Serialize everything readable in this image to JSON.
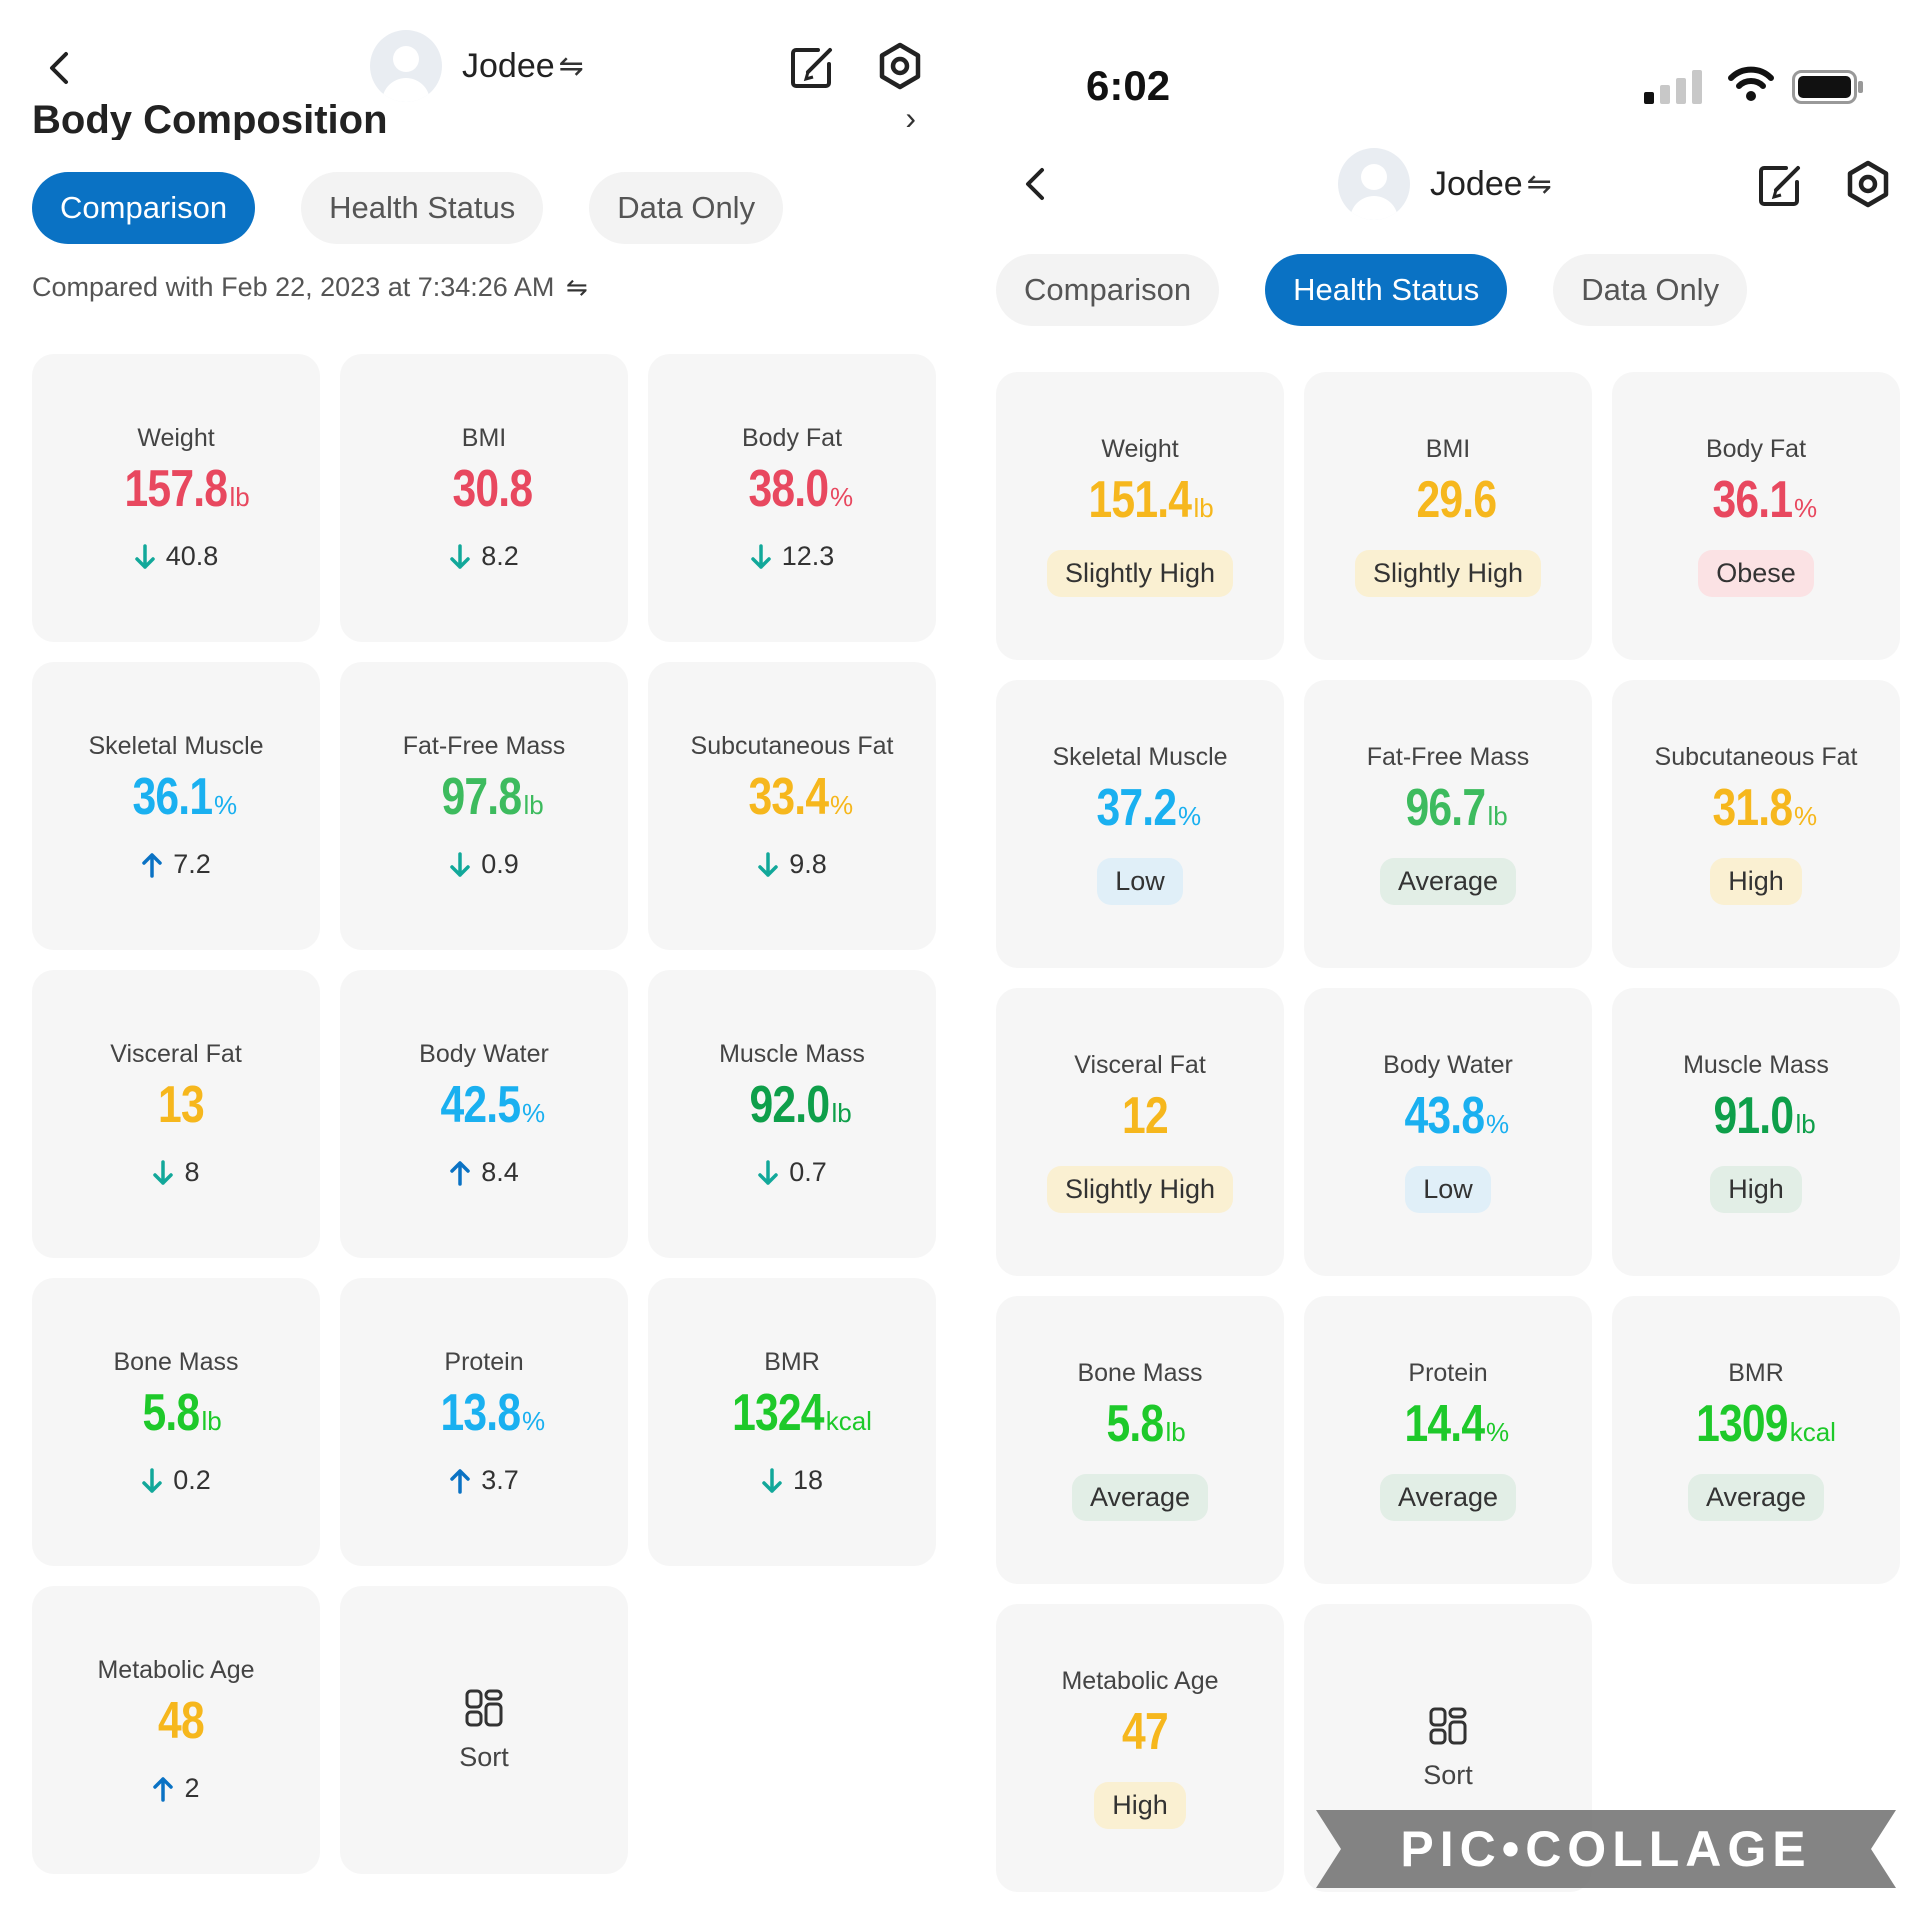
{
  "left": {
    "user_name": "Jodee",
    "section_title": "Body Composition",
    "tabs": [
      "Comparison",
      "Health Status",
      "Data Only"
    ],
    "active_tab": "Comparison",
    "compared_text": "Compared with Feb 22, 2023 at 7:34:26 AM",
    "metrics": [
      {
        "label": "Weight",
        "value": "157.8",
        "unit": "lb",
        "color": "#e8485f",
        "direction": "down",
        "change": "40.8"
      },
      {
        "label": "BMI",
        "value": "30.8",
        "unit": "",
        "color": "#e8485f",
        "direction": "down",
        "change": "8.2"
      },
      {
        "label": "Body Fat",
        "value": "38.0",
        "unit": "%",
        "color": "#e8485f",
        "direction": "down",
        "change": "12.3"
      },
      {
        "label": "Skeletal Muscle",
        "value": "36.1",
        "unit": "%",
        "color": "#1ab0f0",
        "direction": "up",
        "change": "7.2"
      },
      {
        "label": "Fat-Free Mass",
        "value": "97.8",
        "unit": "lb",
        "color": "#3dbb5e",
        "direction": "down",
        "change": "0.9"
      },
      {
        "label": "Subcutaneous Fat",
        "value": "33.4",
        "unit": "%",
        "color": "#f6b71d",
        "direction": "down",
        "change": "9.8"
      },
      {
        "label": "Visceral Fat",
        "value": "13",
        "unit": "",
        "color": "#f6b71d",
        "direction": "down",
        "change": "8"
      },
      {
        "label": "Body Water",
        "value": "42.5",
        "unit": "%",
        "color": "#1ab0f0",
        "direction": "up",
        "change": "8.4"
      },
      {
        "label": "Muscle Mass",
        "value": "92.0",
        "unit": "lb",
        "color": "#0e9f4a",
        "direction": "down",
        "change": "0.7"
      },
      {
        "label": "Bone Mass",
        "value": "5.8",
        "unit": "lb",
        "color": "#1ec92a",
        "direction": "down",
        "change": "0.2"
      },
      {
        "label": "Protein",
        "value": "13.8",
        "unit": "%",
        "color": "#1ab0f0",
        "direction": "up",
        "change": "3.7"
      },
      {
        "label": "BMR",
        "value": "1324",
        "unit": "kcal",
        "color": "#1ec92a",
        "direction": "down",
        "change": "18"
      },
      {
        "label": "Metabolic Age",
        "value": "48",
        "unit": "",
        "color": "#f6b71d",
        "direction": "up",
        "change": "2"
      }
    ],
    "sort_label": "Sort"
  },
  "right": {
    "status_time": "6:02",
    "user_name": "Jodee",
    "tabs": [
      "Comparison",
      "Health Status",
      "Data Only"
    ],
    "active_tab": "Health Status",
    "metrics": [
      {
        "label": "Weight",
        "value": "151.4",
        "unit": "lb",
        "color": "#f6b71d",
        "status": "Slightly High",
        "badge_bg": "#faf0d2"
      },
      {
        "label": "BMI",
        "value": "29.6",
        "unit": "",
        "color": "#f6b71d",
        "status": "Slightly High",
        "badge_bg": "#faf0d2"
      },
      {
        "label": "Body Fat",
        "value": "36.1",
        "unit": "%",
        "color": "#e8485f",
        "status": "Obese",
        "badge_bg": "#fbe2e4"
      },
      {
        "label": "Skeletal Muscle",
        "value": "37.2",
        "unit": "%",
        "color": "#1ab0f0",
        "status": "Low",
        "badge_bg": "#e0eff8"
      },
      {
        "label": "Fat-Free Mass",
        "value": "96.7",
        "unit": "lb",
        "color": "#3dbb5e",
        "status": "Average",
        "badge_bg": "#e2eee6"
      },
      {
        "label": "Subcutaneous Fat",
        "value": "31.8",
        "unit": "%",
        "color": "#f6b71d",
        "status": "High",
        "badge_bg": "#faf0d2"
      },
      {
        "label": "Visceral Fat",
        "value": "12",
        "unit": "",
        "color": "#f6b71d",
        "status": "Slightly High",
        "badge_bg": "#faf0d2"
      },
      {
        "label": "Body Water",
        "value": "43.8",
        "unit": "%",
        "color": "#1ab0f0",
        "status": "Low",
        "badge_bg": "#e0eff8"
      },
      {
        "label": "Muscle Mass",
        "value": "91.0",
        "unit": "lb",
        "color": "#0e9f4a",
        "status": "High",
        "badge_bg": "#e2eee6"
      },
      {
        "label": "Bone Mass",
        "value": "5.8",
        "unit": "lb",
        "color": "#1ec92a",
        "status": "Average",
        "badge_bg": "#e2eee6"
      },
      {
        "label": "Protein",
        "value": "14.4",
        "unit": "%",
        "color": "#1ec92a",
        "status": "Average",
        "badge_bg": "#e2eee6"
      },
      {
        "label": "BMR",
        "value": "1309",
        "unit": "kcal",
        "color": "#1ec92a",
        "status": "Average",
        "badge_bg": "#e2eee6"
      },
      {
        "label": "Metabolic Age",
        "value": "47",
        "unit": "",
        "color": "#f6b71d",
        "status": "High",
        "badge_bg": "#faf0d2"
      }
    ],
    "sort_label": "Sort"
  },
  "watermark": "PIC•COLLAGE",
  "colors": {
    "accent": "#0a72c4",
    "down_arrow": "#12a89a",
    "up_arrow": "#0a72c4"
  },
  "icons": [
    "back-chevron-icon",
    "swap-arrows-icon",
    "edit-icon",
    "settings-gear-icon",
    "sort-grid-icon",
    "arrow-down-icon",
    "arrow-up-icon",
    "signal-icon",
    "wifi-icon",
    "battery-icon"
  ]
}
